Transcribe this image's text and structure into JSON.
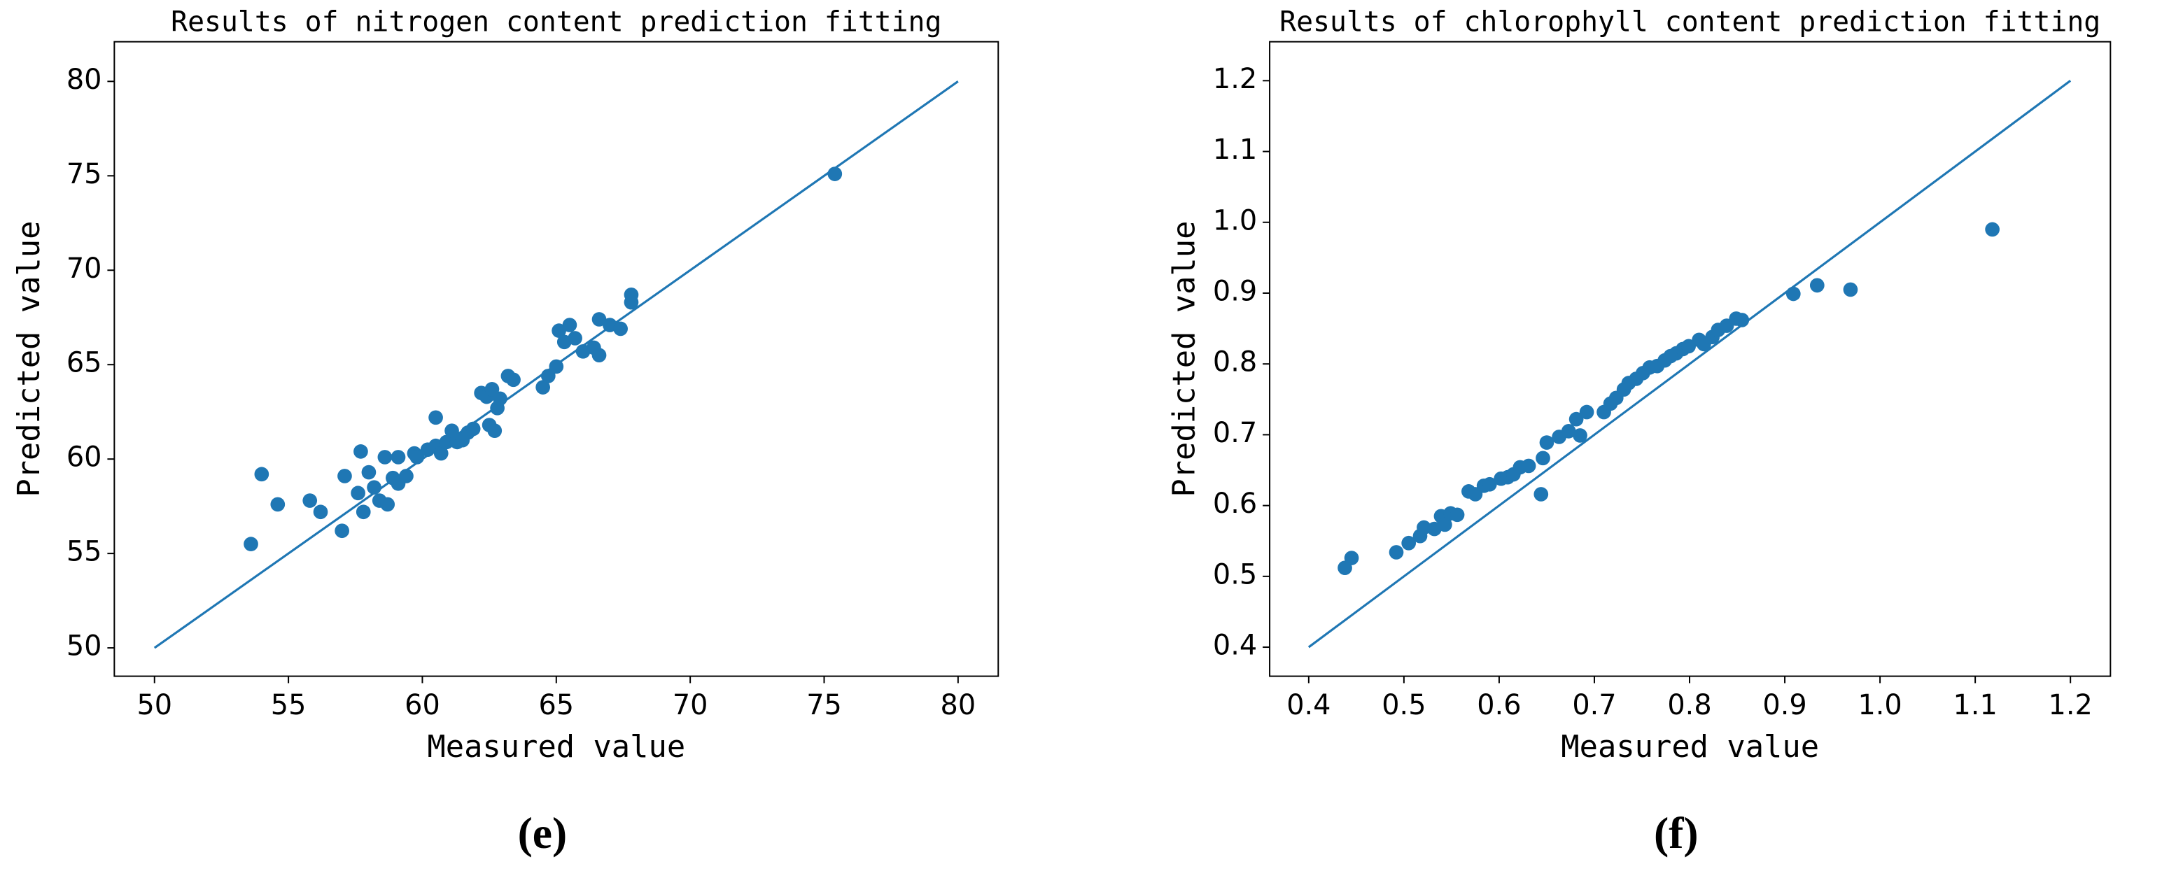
{
  "chart_data": [
    {
      "type": "scatter",
      "title": "Results of nitrogen content prediction fitting",
      "xlabel": "Measured value",
      "ylabel": "Predicted value",
      "caption": "(e)",
      "color": "#1f77b4",
      "xlim": [
        48.5,
        81.5
      ],
      "ylim": [
        48.5,
        82.1
      ],
      "xticks": [
        50,
        55,
        60,
        65,
        70,
        75,
        80
      ],
      "yticks": [
        50,
        55,
        60,
        65,
        70,
        75,
        80
      ],
      "reference_line": {
        "x": [
          50,
          80
        ],
        "y": [
          50,
          80
        ]
      },
      "x": [
        53.6,
        54.0,
        54.6,
        55.8,
        56.2,
        57.0,
        57.1,
        57.7,
        57.6,
        57.8,
        58.0,
        58.2,
        58.4,
        58.6,
        58.7,
        58.9,
        59.1,
        59.1,
        59.4,
        59.7,
        59.8,
        60.2,
        60.5,
        60.5,
        60.7,
        60.9,
        61.1,
        61.3,
        61.5,
        61.7,
        61.9,
        62.2,
        62.4,
        62.5,
        62.7,
        62.6,
        62.8,
        62.9,
        63.2,
        63.4,
        64.5,
        64.7,
        65.0,
        65.1,
        65.3,
        65.5,
        65.7,
        66.0,
        66.4,
        66.6,
        66.6,
        67.0,
        67.4,
        67.8,
        67.8,
        75.4
      ],
      "y": [
        55.5,
        59.2,
        57.6,
        57.8,
        57.2,
        56.2,
        59.1,
        60.4,
        58.2,
        57.2,
        59.3,
        58.5,
        57.8,
        60.1,
        57.6,
        59.0,
        60.1,
        58.7,
        59.1,
        60.3,
        60.1,
        60.5,
        60.7,
        62.2,
        60.3,
        60.9,
        61.5,
        60.9,
        61.0,
        61.4,
        61.6,
        63.5,
        63.3,
        61.8,
        61.5,
        63.7,
        62.7,
        63.2,
        64.4,
        64.2,
        63.8,
        64.4,
        64.9,
        66.8,
        66.2,
        67.1,
        66.4,
        65.7,
        65.9,
        65.5,
        67.4,
        67.1,
        66.9,
        68.3,
        68.7,
        75.1
      ]
    },
    {
      "type": "scatter",
      "title": "Results of chlorophyll content prediction fitting",
      "xlabel": "Measured value",
      "ylabel": "Predicted value",
      "caption": "(f)",
      "color": "#1f77b4",
      "xlim": [
        0.359,
        1.242
      ],
      "ylim": [
        0.359,
        1.255
      ],
      "xticks": [
        0.4,
        0.5,
        0.6,
        0.7,
        0.8,
        0.9,
        {
          "value": 1,
          "label": "1.0"
        },
        1.1,
        1.2
      ],
      "yticks": [
        0.4,
        0.5,
        0.6,
        0.7,
        0.8,
        0.9,
        {
          "value": 1,
          "label": "1.0"
        },
        1.1,
        1.2
      ],
      "reference_line": {
        "x": [
          0.4,
          1.2
        ],
        "y": [
          0.4,
          1.2
        ]
      },
      "x": [
        0.438,
        0.445,
        0.492,
        0.505,
        0.517,
        0.521,
        0.532,
        0.539,
        0.543,
        0.549,
        0.556,
        0.568,
        0.575,
        0.584,
        0.59,
        0.602,
        0.609,
        0.615,
        0.622,
        0.631,
        0.646,
        0.644,
        0.65,
        0.663,
        0.673,
        0.681,
        0.685,
        0.692,
        0.71,
        0.717,
        0.723,
        0.731,
        0.736,
        0.744,
        0.751,
        0.758,
        0.766,
        0.774,
        0.78,
        0.786,
        0.793,
        0.799,
        0.81,
        0.815,
        0.824,
        0.83,
        0.839,
        0.849,
        0.855,
        0.909,
        0.934,
        0.969,
        1.118
      ],
      "y": [
        0.512,
        0.526,
        0.534,
        0.547,
        0.557,
        0.569,
        0.567,
        0.585,
        0.573,
        0.589,
        0.587,
        0.62,
        0.616,
        0.628,
        0.63,
        0.638,
        0.64,
        0.644,
        0.654,
        0.656,
        0.667,
        0.616,
        0.689,
        0.697,
        0.705,
        0.722,
        0.699,
        0.732,
        0.732,
        0.744,
        0.752,
        0.764,
        0.773,
        0.779,
        0.787,
        0.795,
        0.797,
        0.805,
        0.811,
        0.815,
        0.821,
        0.825,
        0.834,
        0.828,
        0.838,
        0.848,
        0.854,
        0.864,
        0.862,
        0.899,
        0.911,
        0.905,
        0.99
      ]
    }
  ]
}
